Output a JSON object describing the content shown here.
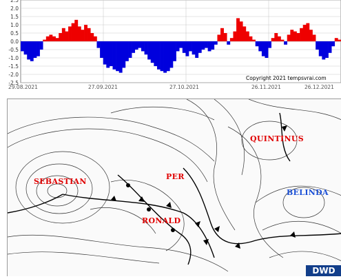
{
  "top_chart": {
    "y_ticks": [
      "2.5",
      "2.0",
      "1.5",
      "1.0",
      "0.5",
      "0.0",
      "-0.5",
      "-1.0",
      "-1.5",
      "-2.0",
      "-2.5"
    ],
    "y_values": [
      2.5,
      2.0,
      1.5,
      1.0,
      0.5,
      0.0,
      -0.5,
      -1.0,
      -1.5,
      -2.0,
      -2.5
    ],
    "x_ticks": [
      "29.08.2021",
      "27.09.2021",
      "27.10.2021",
      "26.11.2021",
      "26.12.2021"
    ],
    "copyright": "Copyright 2021 tempsvrai.com",
    "chart_data": {
      "type": "bar",
      "ylim": [
        -2.5,
        2.5
      ],
      "values": [
        -0.6,
        -0.8,
        -1.1,
        -1.2,
        -1.0,
        -0.9,
        -0.5,
        0.1,
        0.3,
        0.4,
        0.3,
        0.2,
        0.5,
        0.8,
        0.6,
        0.9,
        1.1,
        1.3,
        0.9,
        0.7,
        1.0,
        0.8,
        0.5,
        0.3,
        -0.4,
        -1.0,
        -1.4,
        -1.6,
        -1.5,
        -1.7,
        -1.8,
        -1.9,
        -1.6,
        -1.2,
        -1.0,
        -0.7,
        -0.5,
        -0.4,
        -0.6,
        -0.8,
        -1.1,
        -1.3,
        -1.5,
        -1.7,
        -1.8,
        -1.9,
        -1.8,
        -1.6,
        -1.2,
        -0.6,
        -0.4,
        -0.7,
        -0.9,
        -0.6,
        -0.8,
        -1.0,
        -0.7,
        -0.5,
        -0.4,
        -0.6,
        -0.5,
        -0.2,
        0.4,
        0.8,
        0.5,
        -0.2,
        0.2,
        0.6,
        1.4,
        1.2,
        0.9,
        0.6,
        0.3,
        0.1,
        -0.3,
        -0.6,
        -0.9,
        -1.0,
        -0.4,
        0.2,
        0.5,
        0.3,
        0.1,
        -0.2,
        0.4,
        0.7,
        0.6,
        0.5,
        0.8,
        1.0,
        1.1,
        0.7,
        0.4,
        -0.5,
        -0.9,
        -1.1,
        -1.0,
        -0.7,
        -0.3,
        0.2,
        0.1
      ]
    }
  },
  "map": {
    "storms": [
      {
        "name": "SEBASTIAN",
        "color": "red"
      },
      {
        "name": "PER",
        "color": "red"
      },
      {
        "name": "RONALD",
        "color": "red"
      },
      {
        "name": "QUINTINUS",
        "color": "red"
      },
      {
        "name": "BELINDA",
        "color": "blue"
      }
    ],
    "logo": "DWD"
  }
}
